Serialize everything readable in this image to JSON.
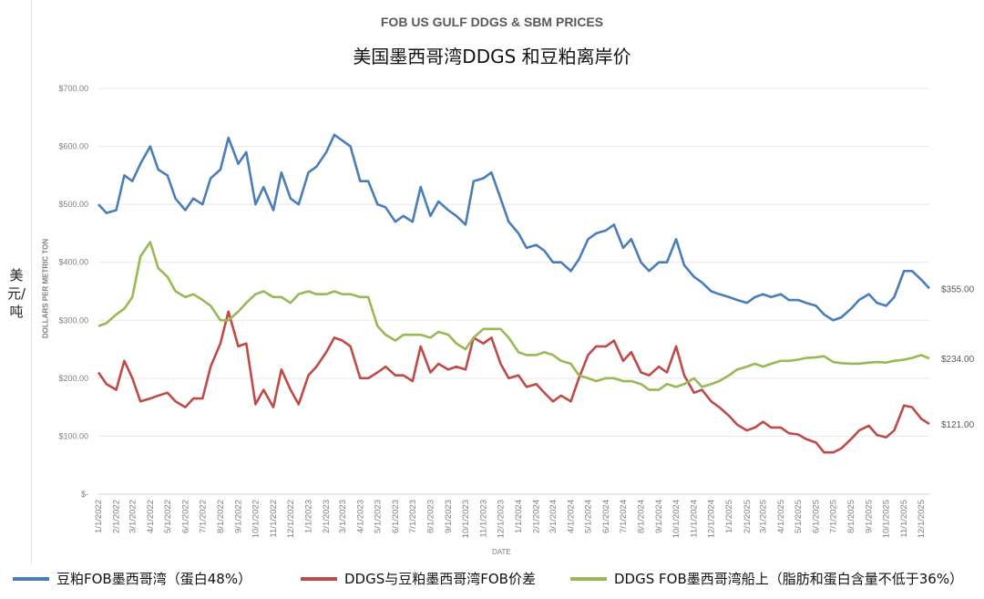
{
  "chart_data": {
    "type": "line",
    "title": "FOB US GULF DDGS & SBM PRICES",
    "subtitle": "美国墨西哥湾DDGS 和豆粕离岸价",
    "xlabel": "DATE",
    "ylabel": "DOLLARS PER METRIC TON",
    "ylabel_cn": "美元/吨",
    "ylim": [
      0,
      700
    ],
    "yticks": [
      "$-",
      "$100.00",
      "$200.00",
      "$300.00",
      "$400.00",
      "$500.00",
      "$600.00",
      "$700.00"
    ],
    "xticks": [
      "1/1/2022",
      "2/1/2022",
      "3/1/2022",
      "4/1/2022",
      "5/1/2022",
      "6/1/2022",
      "7/1/2022",
      "8/1/2022",
      "9/1/2022",
      "10/1/2022",
      "11/1/2022",
      "12/1/2022",
      "1/1/2023",
      "2/1/2023",
      "3/1/2023",
      "4/1/2023",
      "5/1/2023",
      "6/1/2023",
      "7/1/2023",
      "8/1/2023",
      "9/1/2023",
      "10/1/2023",
      "11/1/2023",
      "12/1/2023",
      "1/1/2024",
      "2/1/2024",
      "3/1/2024",
      "4/1/2024",
      "5/1/2024",
      "6/1/2024",
      "7/1/2024",
      "8/1/2024",
      "9/1/2024",
      "10/1/2024",
      "11/1/2024",
      "12/1/2024",
      "1/1/2025",
      "2/1/2025",
      "3/1/2025",
      "4/1/2025",
      "5/1/2025",
      "6/1/2025",
      "7/1/2025",
      "8/1/2025",
      "9/1/2025",
      "10/1/2025",
      "11/1/2025",
      "12/1/2025"
    ],
    "grid": true,
    "legend_position": "bottom",
    "x_dates": [
      "2022-01-01",
      "2022-01-15",
      "2022-02-01",
      "2022-02-15",
      "2022-03-01",
      "2022-03-15",
      "2022-04-01",
      "2022-04-15",
      "2022-05-01",
      "2022-05-15",
      "2022-06-01",
      "2022-06-15",
      "2022-07-01",
      "2022-07-15",
      "2022-08-01",
      "2022-08-15",
      "2022-09-01",
      "2022-09-15",
      "2022-10-01",
      "2022-10-15",
      "2022-11-01",
      "2022-11-15",
      "2022-12-01",
      "2022-12-15",
      "2023-01-01",
      "2023-01-15",
      "2023-02-01",
      "2023-02-15",
      "2023-03-01",
      "2023-03-15",
      "2023-04-01",
      "2023-04-15",
      "2023-05-01",
      "2023-05-15",
      "2023-06-01",
      "2023-06-15",
      "2023-07-01",
      "2023-07-15",
      "2023-08-01",
      "2023-08-15",
      "2023-09-01",
      "2023-09-15",
      "2023-10-01",
      "2023-10-15",
      "2023-11-01",
      "2023-11-15",
      "2023-12-01",
      "2023-12-15",
      "2024-01-01",
      "2024-01-15",
      "2024-02-01",
      "2024-02-15",
      "2024-03-01",
      "2024-03-15",
      "2024-04-01",
      "2024-04-15",
      "2024-05-01",
      "2024-05-15",
      "2024-06-01",
      "2024-06-15",
      "2024-07-01",
      "2024-07-15",
      "2024-08-01",
      "2024-08-15",
      "2024-09-01",
      "2024-09-15",
      "2024-10-01",
      "2024-10-15",
      "2024-11-01",
      "2024-11-15",
      "2024-12-01",
      "2024-12-15",
      "2025-01-01",
      "2025-01-15",
      "2025-02-01",
      "2025-02-15",
      "2025-03-01",
      "2025-03-15",
      "2025-04-01",
      "2025-04-15",
      "2025-05-01",
      "2025-05-15",
      "2025-06-01",
      "2025-06-15",
      "2025-07-01",
      "2025-07-15",
      "2025-08-01",
      "2025-08-15",
      "2025-09-01",
      "2025-09-15",
      "2025-10-01",
      "2025-10-15",
      "2025-11-01",
      "2025-11-15",
      "2025-12-01",
      "2025-12-15"
    ],
    "series": [
      {
        "name": "豆粕FOB墨西哥湾（蛋白48%）",
        "color": "#4a7ebb",
        "end_label": "$355.00",
        "values": [
          500,
          485,
          490,
          550,
          540,
          570,
          600,
          560,
          550,
          510,
          490,
          510,
          500,
          545,
          560,
          615,
          570,
          590,
          500,
          530,
          490,
          555,
          510,
          500,
          555,
          565,
          590,
          620,
          610,
          600,
          540,
          540,
          500,
          495,
          470,
          480,
          470,
          530,
          480,
          505,
          490,
          480,
          465,
          540,
          545,
          555,
          510,
          470,
          450,
          425,
          430,
          420,
          400,
          400,
          385,
          405,
          440,
          450,
          455,
          465,
          425,
          440,
          400,
          385,
          400,
          400,
          440,
          395,
          375,
          365,
          350,
          345,
          340,
          335,
          330,
          340,
          345,
          340,
          345,
          335,
          335,
          330,
          325,
          310,
          300,
          305,
          320,
          335,
          345,
          330,
          325,
          340,
          385,
          385,
          370,
          355
        ]
      },
      {
        "name": "DDGS与豆粕墨西哥湾FOB价差",
        "color": "#be4b48",
        "end_label": "$121.00",
        "values": [
          210,
          190,
          180,
          230,
          200,
          160,
          165,
          170,
          175,
          160,
          150,
          165,
          165,
          220,
          260,
          315,
          255,
          260,
          155,
          180,
          150,
          215,
          180,
          155,
          205,
          220,
          245,
          270,
          265,
          255,
          200,
          200,
          210,
          220,
          205,
          205,
          195,
          255,
          210,
          225,
          215,
          220,
          215,
          270,
          260,
          270,
          225,
          200,
          205,
          185,
          190,
          175,
          160,
          170,
          160,
          200,
          240,
          255,
          255,
          265,
          230,
          245,
          210,
          205,
          220,
          210,
          255,
          205,
          175,
          180,
          160,
          150,
          135,
          120,
          110,
          115,
          125,
          115,
          115,
          105,
          103,
          95,
          89,
          72,
          72,
          79,
          95,
          110,
          118,
          102,
          98,
          110,
          153,
          150,
          130,
          121
        ]
      },
      {
        "name": "DDGS FOB墨西哥湾船上（脂肪和蛋白含量不低于36%）",
        "color": "#98b954",
        "end_label": "$234.00",
        "values": [
          290,
          295,
          310,
          320,
          340,
          410,
          435,
          390,
          375,
          350,
          340,
          345,
          335,
          325,
          300,
          300,
          315,
          330,
          345,
          350,
          340,
          340,
          330,
          345,
          350,
          345,
          345,
          350,
          345,
          345,
          340,
          340,
          290,
          275,
          265,
          275,
          275,
          275,
          270,
          280,
          275,
          260,
          250,
          270,
          285,
          285,
          285,
          270,
          245,
          240,
          240,
          245,
          240,
          230,
          225,
          205,
          200,
          195,
          200,
          200,
          195,
          195,
          190,
          180,
          180,
          190,
          185,
          190,
          200,
          185,
          190,
          195,
          205,
          215,
          220,
          225,
          220,
          225,
          230,
          230,
          232,
          235,
          236,
          238,
          228,
          226,
          225,
          225,
          227,
          228,
          227,
          230,
          232,
          235,
          240,
          234
        ]
      }
    ]
  }
}
